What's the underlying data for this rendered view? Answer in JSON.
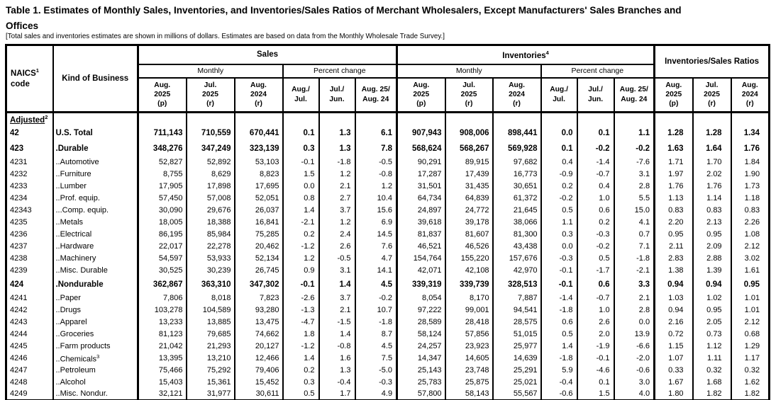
{
  "title": {
    "line1": "Table 1.  Estimates of Monthly Sales, Inventories, and Inventories/Sales Ratios of Merchant Wholesalers, Except Manufacturers' Sales Branches and",
    "line2": "Offices"
  },
  "subtitle": "[Total sales and inventories estimates are shown in millions of dollars.  Estimates are based on data from the Monthly Wholesale Trade Survey.]",
  "header": {
    "naics_label": "NAICS",
    "naics_sup": "1",
    "naics_label_line2": "code",
    "kind_label": "Kind of Business",
    "sales_label": "Sales",
    "inventories_label": "Inventories",
    "inventories_sup": "4",
    "ratios_label": "Inventories/Sales Ratios",
    "monthly_label": "Monthly",
    "percent_change_label": "Percent change",
    "months": [
      [
        "Aug.",
        "2025",
        "(p)"
      ],
      [
        "Jul.",
        "2025",
        "(r)"
      ],
      [
        "Aug.",
        "2024",
        "(r)"
      ]
    ],
    "percents": [
      [
        "Aug./",
        "Jul."
      ],
      [
        "Jul./",
        "Jun."
      ],
      [
        "Aug. 25/",
        "Aug. 24"
      ]
    ]
  },
  "section": {
    "label": "Adjusted",
    "sup": "2"
  },
  "rows": [
    {
      "code": "42",
      "kind": "U.S. Total",
      "group": true,
      "v": [
        "711,143",
        "710,559",
        "670,441",
        "0.1",
        "1.3",
        "6.1",
        "907,943",
        "908,006",
        "898,441",
        "0.0",
        "0.1",
        "1.1",
        "1.28",
        "1.28",
        "1.34"
      ]
    },
    {
      "code": "423",
      "kind": ".Durable",
      "group": true,
      "v": [
        "348,276",
        "347,249",
        "323,139",
        "0.3",
        "1.3",
        "7.8",
        "568,624",
        "568,267",
        "569,928",
        "0.1",
        "-0.2",
        "-0.2",
        "1.63",
        "1.64",
        "1.76"
      ]
    },
    {
      "code": "4231",
      "kind": "..Automotive",
      "v": [
        "52,827",
        "52,892",
        "53,103",
        "-0.1",
        "-1.8",
        "-0.5",
        "90,291",
        "89,915",
        "97,682",
        "0.4",
        "-1.4",
        "-7.6",
        "1.71",
        "1.70",
        "1.84"
      ]
    },
    {
      "code": "4232",
      "kind": "..Furniture",
      "v": [
        "8,755",
        "8,629",
        "8,823",
        "1.5",
        "1.2",
        "-0.8",
        "17,287",
        "17,439",
        "16,773",
        "-0.9",
        "-0.7",
        "3.1",
        "1.97",
        "2.02",
        "1.90"
      ]
    },
    {
      "code": "4233",
      "kind": "..Lumber",
      "v": [
        "17,905",
        "17,898",
        "17,695",
        "0.0",
        "2.1",
        "1.2",
        "31,501",
        "31,435",
        "30,651",
        "0.2",
        "0.4",
        "2.8",
        "1.76",
        "1.76",
        "1.73"
      ]
    },
    {
      "code": "4234",
      "kind": "..Prof. equip.",
      "v": [
        "57,450",
        "57,008",
        "52,051",
        "0.8",
        "2.7",
        "10.4",
        "64,734",
        "64,839",
        "61,372",
        "-0.2",
        "1.0",
        "5.5",
        "1.13",
        "1.14",
        "1.18"
      ]
    },
    {
      "code": "42343",
      "kind": "...Comp. equip.",
      "v": [
        "30,090",
        "29,676",
        "26,037",
        "1.4",
        "3.7",
        "15.6",
        "24,897",
        "24,772",
        "21,645",
        "0.5",
        "0.6",
        "15.0",
        "0.83",
        "0.83",
        "0.83"
      ]
    },
    {
      "code": "4235",
      "kind": "..Metals",
      "v": [
        "18,005",
        "18,388",
        "16,841",
        "-2.1",
        "1.2",
        "6.9",
        "39,618",
        "39,178",
        "38,066",
        "1.1",
        "0.2",
        "4.1",
        "2.20",
        "2.13",
        "2.26"
      ]
    },
    {
      "code": "4236",
      "kind": "..Electrical",
      "v": [
        "86,195",
        "85,984",
        "75,285",
        "0.2",
        "2.4",
        "14.5",
        "81,837",
        "81,607",
        "81,300",
        "0.3",
        "-0.3",
        "0.7",
        "0.95",
        "0.95",
        "1.08"
      ]
    },
    {
      "code": "4237",
      "kind": "..Hardware",
      "v": [
        "22,017",
        "22,278",
        "20,462",
        "-1.2",
        "2.6",
        "7.6",
        "46,521",
        "46,526",
        "43,438",
        "0.0",
        "-0.2",
        "7.1",
        "2.11",
        "2.09",
        "2.12"
      ]
    },
    {
      "code": "4238",
      "kind": "..Machinery",
      "v": [
        "54,597",
        "53,933",
        "52,134",
        "1.2",
        "-0.5",
        "4.7",
        "154,764",
        "155,220",
        "157,676",
        "-0.3",
        "0.5",
        "-1.8",
        "2.83",
        "2.88",
        "3.02"
      ]
    },
    {
      "code": "4239",
      "kind": "..Misc. Durable",
      "v": [
        "30,525",
        "30,239",
        "26,745",
        "0.9",
        "3.1",
        "14.1",
        "42,071",
        "42,108",
        "42,970",
        "-0.1",
        "-1.7",
        "-2.1",
        "1.38",
        "1.39",
        "1.61"
      ]
    },
    {
      "code": "424",
      "kind": ".Nondurable",
      "group": true,
      "v": [
        "362,867",
        "363,310",
        "347,302",
        "-0.1",
        "1.4",
        "4.5",
        "339,319",
        "339,739",
        "328,513",
        "-0.1",
        "0.6",
        "3.3",
        "0.94",
        "0.94",
        "0.95"
      ]
    },
    {
      "code": "4241",
      "kind": "..Paper",
      "v": [
        "7,806",
        "8,018",
        "7,823",
        "-2.6",
        "3.7",
        "-0.2",
        "8,054",
        "8,170",
        "7,887",
        "-1.4",
        "-0.7",
        "2.1",
        "1.03",
        "1.02",
        "1.01"
      ]
    },
    {
      "code": "4242",
      "kind": "..Drugs",
      "v": [
        "103,278",
        "104,589",
        "93,280",
        "-1.3",
        "2.1",
        "10.7",
        "97,222",
        "99,001",
        "94,541",
        "-1.8",
        "1.0",
        "2.8",
        "0.94",
        "0.95",
        "1.01"
      ]
    },
    {
      "code": "4243",
      "kind": "..Apparel",
      "v": [
        "13,233",
        "13,885",
        "13,475",
        "-4.7",
        "-1.5",
        "-1.8",
        "28,589",
        "28,418",
        "28,575",
        "0.6",
        "2.6",
        "0.0",
        "2.16",
        "2.05",
        "2.12"
      ]
    },
    {
      "code": "4244",
      "kind": "..Groceries",
      "v": [
        "81,123",
        "79,685",
        "74,662",
        "1.8",
        "1.4",
        "8.7",
        "58,124",
        "57,856",
        "51,015",
        "0.5",
        "2.0",
        "13.9",
        "0.72",
        "0.73",
        "0.68"
      ]
    },
    {
      "code": "4245",
      "kind": "..Farm products",
      "v": [
        "21,042",
        "21,293",
        "20,127",
        "-1.2",
        "-0.8",
        "4.5",
        "24,257",
        "23,923",
        "25,977",
        "1.4",
        "-1.9",
        "-6.6",
        "1.15",
        "1.12",
        "1.29"
      ]
    },
    {
      "code": "4246",
      "kind": "..Chemicals",
      "kind_sup": "3",
      "v": [
        "13,395",
        "13,210",
        "12,466",
        "1.4",
        "1.6",
        "7.5",
        "14,347",
        "14,605",
        "14,639",
        "-1.8",
        "-0.1",
        "-2.0",
        "1.07",
        "1.11",
        "1.17"
      ]
    },
    {
      "code": "4247",
      "kind": "..Petroleum",
      "v": [
        "75,466",
        "75,292",
        "79,406",
        "0.2",
        "1.3",
        "-5.0",
        "25,143",
        "23,748",
        "25,291",
        "5.9",
        "-4.6",
        "-0.6",
        "0.33",
        "0.32",
        "0.32"
      ]
    },
    {
      "code": "4248",
      "kind": "..Alcohol",
      "v": [
        "15,403",
        "15,361",
        "15,452",
        "0.3",
        "-0.4",
        "-0.3",
        "25,783",
        "25,875",
        "25,021",
        "-0.4",
        "0.1",
        "3.0",
        "1.67",
        "1.68",
        "1.62"
      ]
    },
    {
      "code": "4249",
      "kind": "..Misc. Nondur.",
      "v": [
        "32,121",
        "31,977",
        "30,611",
        "0.5",
        "1.7",
        "4.9",
        "57,800",
        "58,143",
        "55,567",
        "-0.6",
        "1.5",
        "4.0",
        "1.80",
        "1.82",
        "1.82"
      ]
    }
  ]
}
